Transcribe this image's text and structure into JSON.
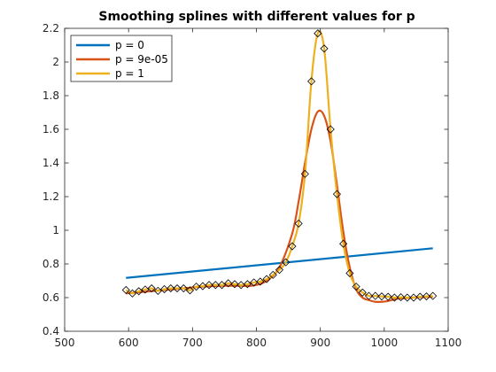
{
  "chart_data": {
    "type": "line",
    "title": "Smoothing splines with different values for p",
    "xlabel": "",
    "ylabel": "",
    "xlim": [
      500,
      1100
    ],
    "ylim": [
      0.4,
      2.2
    ],
    "xticks": [
      500,
      600,
      700,
      800,
      900,
      1000,
      1100
    ],
    "yticks": [
      0.4,
      0.6,
      0.8,
      1,
      1.2,
      1.4,
      1.6,
      1.8,
      2,
      2.2
    ],
    "grid": false,
    "legend_position": "top-left",
    "data_points": {
      "x": [
        596,
        606,
        616,
        626,
        636,
        646,
        656,
        666,
        676,
        686,
        696,
        706,
        716,
        726,
        736,
        746,
        756,
        766,
        776,
        786,
        796,
        806,
        816,
        826,
        836,
        846,
        856,
        866,
        876,
        886,
        896,
        906,
        916,
        926,
        936,
        946,
        956,
        966,
        976,
        986,
        996,
        1006,
        1016,
        1026,
        1036,
        1046,
        1056,
        1066,
        1076
      ],
      "y": [
        0.645,
        0.625,
        0.638,
        0.648,
        0.655,
        0.64,
        0.65,
        0.655,
        0.655,
        0.655,
        0.643,
        0.665,
        0.668,
        0.675,
        0.675,
        0.675,
        0.685,
        0.68,
        0.675,
        0.68,
        0.69,
        0.695,
        0.71,
        0.735,
        0.765,
        0.81,
        0.905,
        1.04,
        1.335,
        1.885,
        2.17,
        2.08,
        1.6,
        1.215,
        0.92,
        0.745,
        0.665,
        0.63,
        0.61,
        0.61,
        0.607,
        0.605,
        0.6,
        0.602,
        0.6,
        0.6,
        0.605,
        0.607,
        0.61
      ],
      "marker": "diamond"
    },
    "series": [
      {
        "name": "p = 0",
        "color": "#0072BD",
        "x": [
          596,
          1076
        ],
        "values": [
          0.717,
          0.893
        ]
      },
      {
        "name": "p = 9e-05",
        "color": "#D95319",
        "x": [
          596,
          626,
          656,
          686,
          716,
          746,
          776,
          796,
          816,
          836,
          856,
          866,
          876,
          886,
          896,
          906,
          916,
          926,
          936,
          946,
          956,
          966,
          976,
          986,
          996,
          1006,
          1016,
          1026,
          1046,
          1076
        ],
        "values": [
          0.625,
          0.635,
          0.645,
          0.655,
          0.665,
          0.67,
          0.67,
          0.672,
          0.7,
          0.78,
          0.98,
          1.17,
          1.4,
          1.6,
          1.705,
          1.68,
          1.53,
          1.27,
          0.99,
          0.78,
          0.65,
          0.6,
          0.585,
          0.575,
          0.575,
          0.58,
          0.59,
          0.595,
          0.6,
          0.605
        ]
      },
      {
        "name": "p = 1",
        "color": "#EDB120",
        "x": [
          596,
          606,
          616,
          626,
          636,
          646,
          656,
          666,
          676,
          686,
          696,
          706,
          716,
          726,
          736,
          746,
          756,
          766,
          776,
          786,
          796,
          806,
          816,
          826,
          836,
          846,
          856,
          866,
          876,
          886,
          896,
          906,
          916,
          926,
          936,
          946,
          956,
          966,
          976,
          986,
          996,
          1006,
          1016,
          1026,
          1036,
          1046,
          1056,
          1066,
          1076
        ],
        "values": [
          0.645,
          0.625,
          0.638,
          0.648,
          0.655,
          0.64,
          0.65,
          0.655,
          0.655,
          0.655,
          0.643,
          0.665,
          0.668,
          0.675,
          0.675,
          0.675,
          0.685,
          0.68,
          0.675,
          0.68,
          0.69,
          0.695,
          0.71,
          0.735,
          0.765,
          0.81,
          0.905,
          1.04,
          1.335,
          1.885,
          2.17,
          2.08,
          1.6,
          1.215,
          0.92,
          0.745,
          0.665,
          0.63,
          0.61,
          0.61,
          0.607,
          0.605,
          0.6,
          0.602,
          0.6,
          0.6,
          0.605,
          0.607,
          0.61
        ]
      }
    ]
  }
}
